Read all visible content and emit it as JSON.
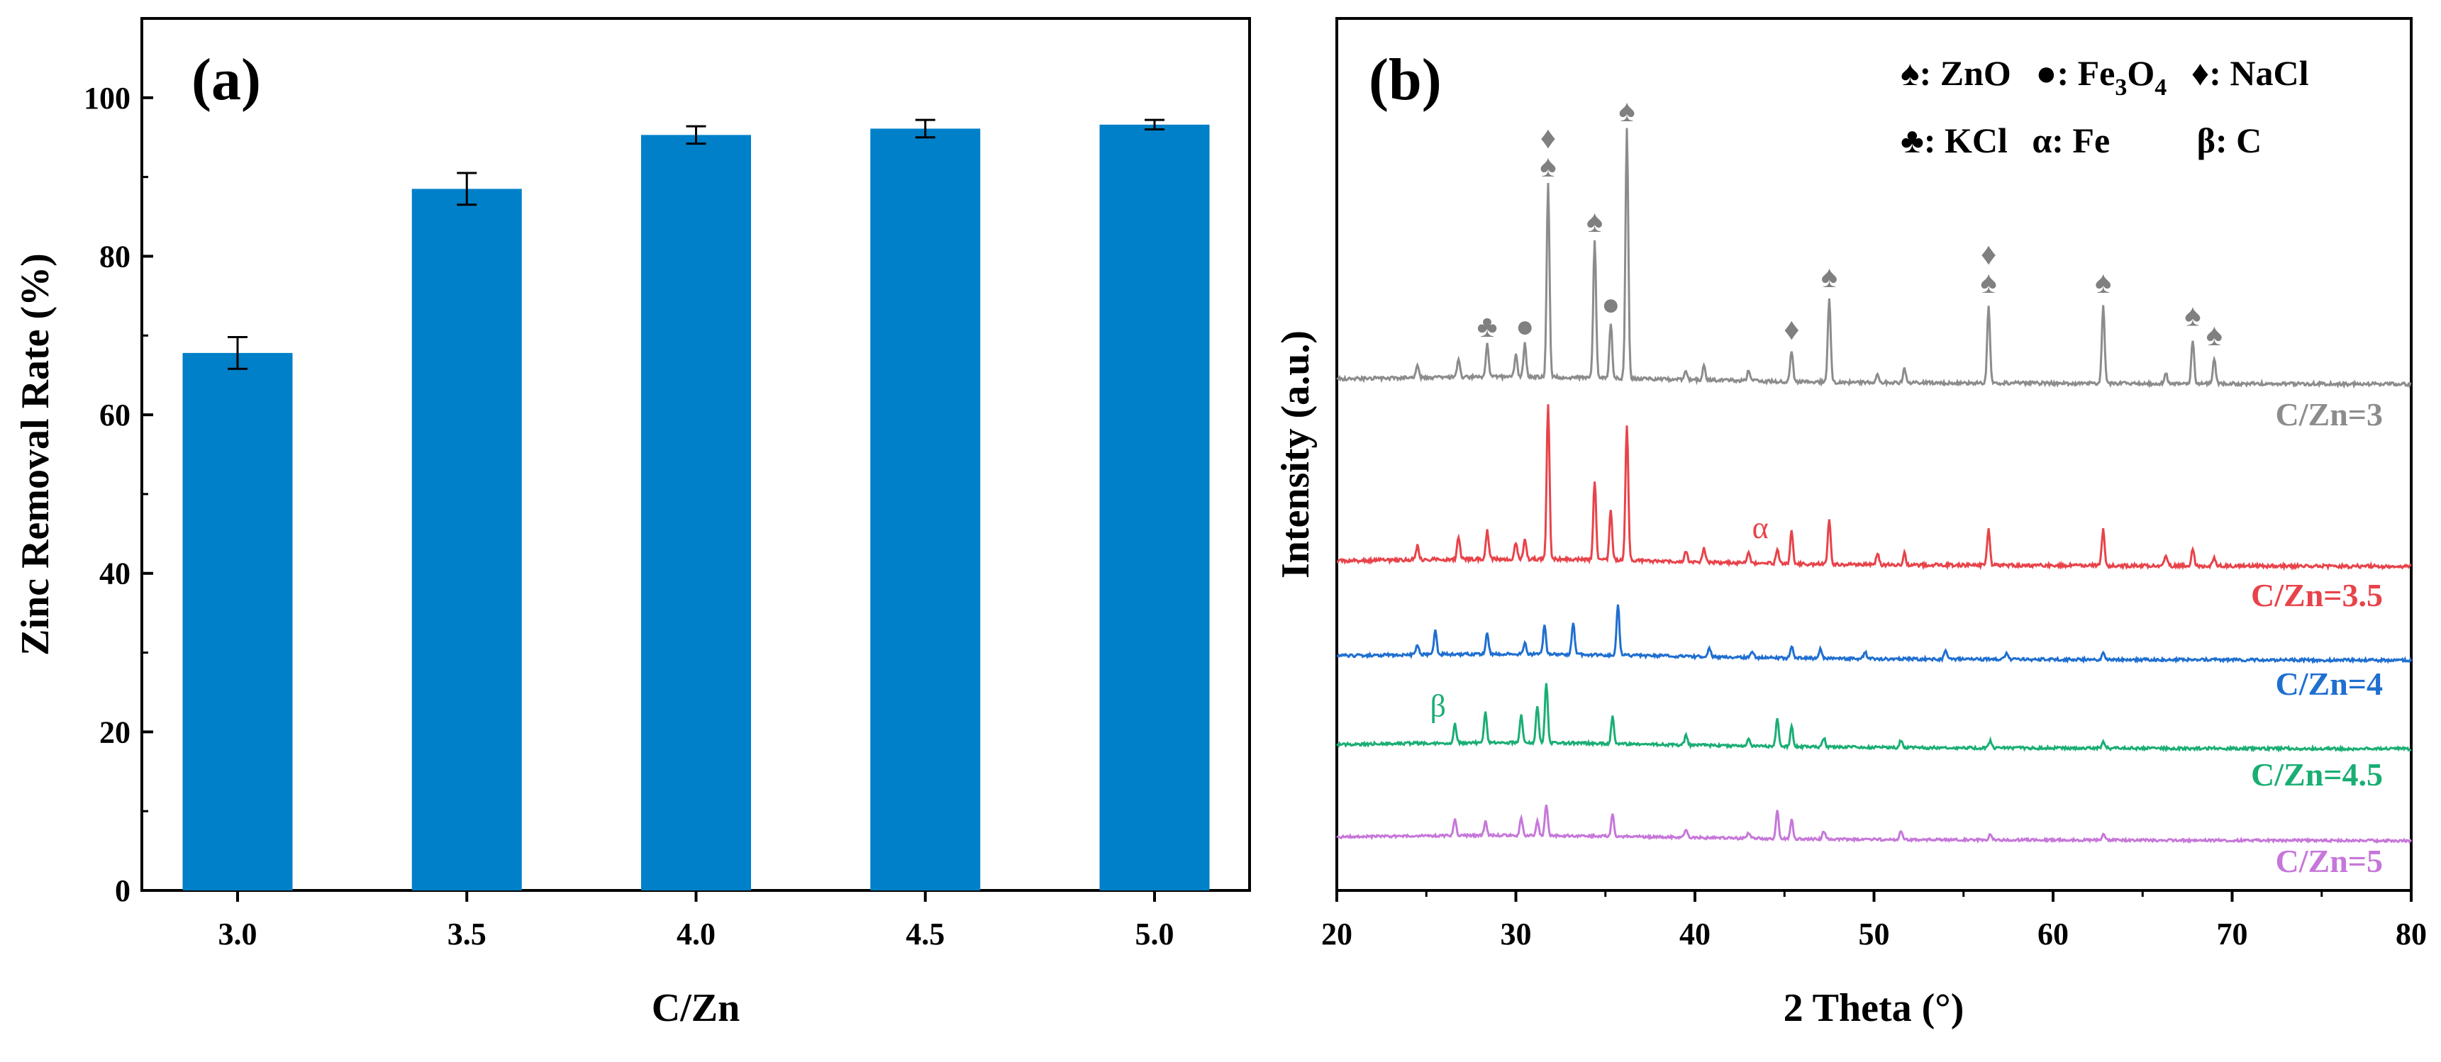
{
  "chart_data": [
    {
      "type": "bar",
      "panel_label": "(a)",
      "xlabel": "C/Zn",
      "ylabel": "Zinc Removal Rate (%)",
      "categories": [
        "3.0",
        "3.5",
        "4.0",
        "4.5",
        "5.0"
      ],
      "values": [
        67.8,
        88.5,
        95.3,
        96.1,
        96.6
      ],
      "errors": [
        2.0,
        2.0,
        1.1,
        1.1,
        0.6
      ],
      "ylim": [
        0,
        110
      ],
      "yticks": [
        "0",
        "20",
        "40",
        "60",
        "80",
        "100"
      ],
      "bar_color": "#0080C8"
    },
    {
      "type": "line",
      "panel_label": "(b)",
      "xlabel": "2 Theta (°)",
      "ylabel": "Intensity (a.u.)",
      "xlim": [
        20,
        80
      ],
      "xticks": [
        "20",
        "30",
        "40",
        "50",
        "60",
        "70",
        "80"
      ],
      "legend": {
        "row1": [
          {
            "symbol": "♠",
            "text": ": ZnO"
          },
          {
            "symbol": "●",
            "text": ": Fe",
            "sub": "3",
            "text2": "O",
            "sub2": "4"
          },
          {
            "symbol": "♦",
            "text": ": NaCl"
          }
        ],
        "row2": [
          {
            "symbol": "♣",
            "text": ": KCl"
          },
          {
            "symbol": "α",
            "text": ": Fe"
          },
          {
            "symbol": "β",
            "text": ": C"
          }
        ]
      },
      "series": [
        {
          "name": "C/Zn=3",
          "color": "#8C8C8C",
          "baseline": 0.0,
          "peaks": [
            [
              24.5,
              0.05
            ],
            [
              26.8,
              0.07
            ],
            [
              28.4,
              0.12
            ],
            [
              30.0,
              0.08
            ],
            [
              30.5,
              0.12
            ],
            [
              31.8,
              0.7
            ],
            [
              34.4,
              0.5
            ],
            [
              35.3,
              0.2
            ],
            [
              36.2,
              0.9
            ],
            [
              39.5,
              0.03
            ],
            [
              40.5,
              0.05
            ],
            [
              43.0,
              0.04
            ],
            [
              45.4,
              0.11
            ],
            [
              47.5,
              0.3
            ],
            [
              50.2,
              0.03
            ],
            [
              51.7,
              0.05
            ],
            [
              56.4,
              0.28
            ],
            [
              62.8,
              0.28
            ],
            [
              66.3,
              0.04
            ],
            [
              67.8,
              0.16
            ],
            [
              69.0,
              0.09
            ]
          ]
        },
        {
          "name": "C/Zn=3.5",
          "color": "#E8434A",
          "baseline": 0.0,
          "peaks": [
            [
              24.5,
              0.05
            ],
            [
              26.8,
              0.08
            ],
            [
              28.4,
              0.1
            ],
            [
              30.0,
              0.06
            ],
            [
              30.5,
              0.07
            ],
            [
              31.8,
              0.55
            ],
            [
              34.4,
              0.28
            ],
            [
              35.3,
              0.18
            ],
            [
              36.2,
              0.48
            ],
            [
              39.5,
              0.04
            ],
            [
              40.5,
              0.05
            ],
            [
              43.0,
              0.04
            ],
            [
              44.6,
              0.05
            ],
            [
              45.4,
              0.12
            ],
            [
              47.5,
              0.16
            ],
            [
              50.2,
              0.04
            ],
            [
              51.7,
              0.04
            ],
            [
              56.4,
              0.13
            ],
            [
              62.8,
              0.13
            ],
            [
              66.3,
              0.04
            ],
            [
              67.8,
              0.06
            ],
            [
              69.0,
              0.03
            ]
          ]
        },
        {
          "name": "C/Zn=4",
          "color": "#1F6FD0",
          "baseline": 0.0,
          "peaks": [
            [
              24.5,
              0.04
            ],
            [
              25.5,
              0.1
            ],
            [
              28.4,
              0.09
            ],
            [
              30.5,
              0.05
            ],
            [
              31.6,
              0.12
            ],
            [
              33.2,
              0.14
            ],
            [
              35.7,
              0.22
            ],
            [
              40.8,
              0.04
            ],
            [
              43.2,
              0.03
            ],
            [
              45.4,
              0.05
            ],
            [
              47.0,
              0.04
            ],
            [
              49.5,
              0.03
            ],
            [
              54.0,
              0.04
            ],
            [
              57.4,
              0.03
            ],
            [
              62.8,
              0.03
            ]
          ]
        },
        {
          "name": "C/Zn=4.5",
          "color": "#1AAE74",
          "baseline": 0.0,
          "peaks": [
            [
              26.6,
              0.08
            ],
            [
              28.3,
              0.13
            ],
            [
              30.3,
              0.12
            ],
            [
              31.2,
              0.16
            ],
            [
              31.7,
              0.26
            ],
            [
              35.4,
              0.12
            ],
            [
              39.5,
              0.04
            ],
            [
              43.0,
              0.03
            ],
            [
              44.6,
              0.12
            ],
            [
              45.4,
              0.09
            ],
            [
              47.2,
              0.04
            ],
            [
              51.5,
              0.03
            ],
            [
              56.5,
              0.03
            ],
            [
              62.8,
              0.03
            ]
          ]
        },
        {
          "name": "C/Zn=5",
          "color": "#C677D9",
          "baseline": 0.0,
          "peaks": [
            [
              26.6,
              0.08
            ],
            [
              28.3,
              0.07
            ],
            [
              30.3,
              0.09
            ],
            [
              31.2,
              0.07
            ],
            [
              31.7,
              0.16
            ],
            [
              35.4,
              0.11
            ],
            [
              39.5,
              0.04
            ],
            [
              43.0,
              0.03
            ],
            [
              44.6,
              0.14
            ],
            [
              45.4,
              0.1
            ],
            [
              47.2,
              0.04
            ],
            [
              51.5,
              0.04
            ],
            [
              56.5,
              0.03
            ],
            [
              62.8,
              0.03
            ]
          ]
        }
      ],
      "annotations": [
        {
          "symbol": "♣",
          "x": 28.4,
          "series": "C/Zn=3"
        },
        {
          "symbol": "●",
          "x": 30.5,
          "series": "C/Zn=3"
        },
        {
          "symbol": "♠",
          "x": 31.8,
          "series": "C/Zn=3"
        },
        {
          "symbol": "♦",
          "x": 31.8,
          "series": "C/Zn=3",
          "stack": 1
        },
        {
          "symbol": "♠",
          "x": 34.4,
          "series": "C/Zn=3"
        },
        {
          "symbol": "●",
          "x": 35.3,
          "series": "C/Zn=3"
        },
        {
          "symbol": "♠",
          "x": 36.2,
          "series": "C/Zn=3"
        },
        {
          "symbol": "♦",
          "x": 45.4,
          "series": "C/Zn=3"
        },
        {
          "symbol": "♠",
          "x": 47.5,
          "series": "C/Zn=3"
        },
        {
          "symbol": "♠",
          "x": 56.4,
          "series": "C/Zn=3"
        },
        {
          "symbol": "♦",
          "x": 56.4,
          "series": "C/Zn=3",
          "stack": 1
        },
        {
          "symbol": "♠",
          "x": 62.8,
          "series": "C/Zn=3"
        },
        {
          "symbol": "♠",
          "x": 67.8,
          "series": "C/Zn=3"
        },
        {
          "symbol": "♠",
          "x": 69.0,
          "series": "C/Zn=3"
        },
        {
          "symbol": "α",
          "x": 44.6,
          "series": "C/Zn=3.5"
        },
        {
          "symbol": "β",
          "x": 26.6,
          "series": "C/Zn=4.5"
        }
      ]
    }
  ]
}
